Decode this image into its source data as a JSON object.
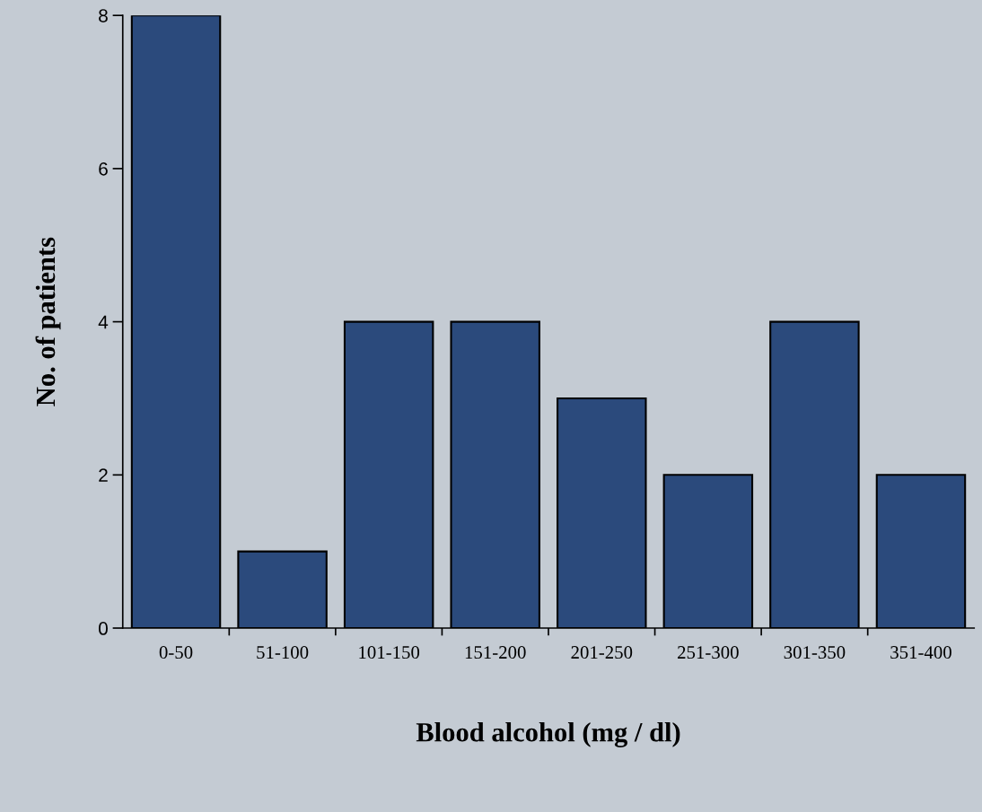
{
  "chart_data": {
    "type": "bar",
    "xlabel": "Blood alcohol (mg / dl)",
    "ylabel": "No. of patients",
    "categories": [
      "0-50",
      "51-100",
      "101-150",
      "151-200",
      "201-250",
      "251-300",
      "301-350",
      "351-400"
    ],
    "values": [
      8,
      1,
      4,
      4,
      3,
      2,
      4,
      2
    ],
    "color": "#2b4a7c",
    "ylim": [
      0,
      8
    ],
    "yticks": [
      0,
      2,
      4,
      6,
      8
    ],
    "grid": false,
    "legend": false
  }
}
